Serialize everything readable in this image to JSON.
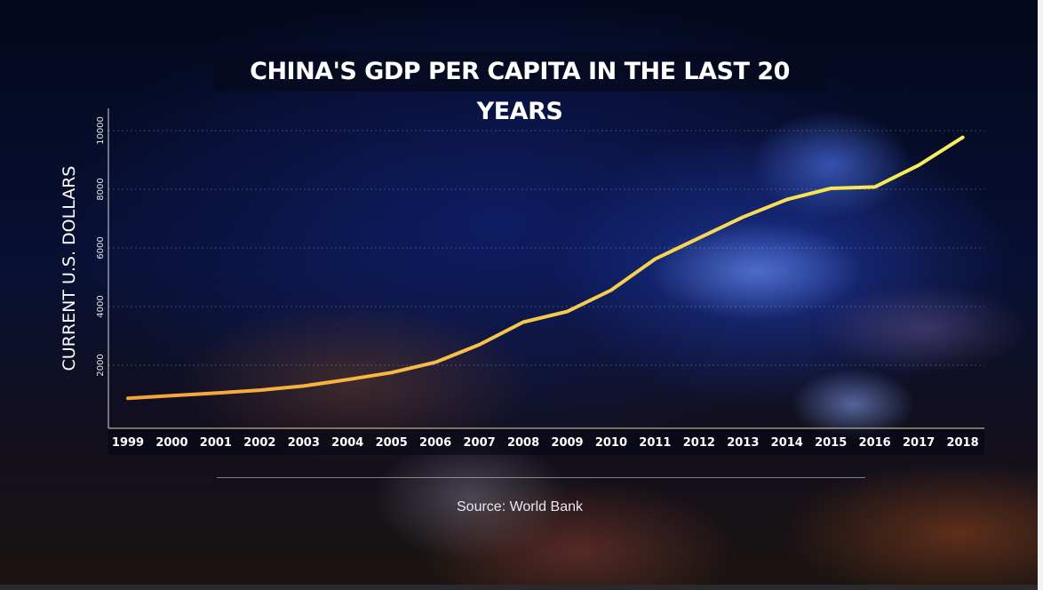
{
  "chart_data": {
    "type": "line",
    "title": "CHINA'S GDP PER CAPITA IN THE LAST 20 YEARS",
    "ylabel": "CURRENT U.S. DOLLARS",
    "xlabel": "",
    "source": "Source: World Bank",
    "x": [
      "1999",
      "2000",
      "2001",
      "2002",
      "2003",
      "2004",
      "2005",
      "2006",
      "2007",
      "2008",
      "2009",
      "2010",
      "2011",
      "2012",
      "2013",
      "2014",
      "2015",
      "2016",
      "2017",
      "2018"
    ],
    "series": [
      {
        "values": [
          870,
          960,
          1050,
          1150,
          1290,
          1510,
          1750,
          2100,
          2700,
          3470,
          3830,
          4560,
          5620,
          6340,
          7050,
          7650,
          8030,
          8080,
          8820,
          9770
        ]
      }
    ],
    "yticks": [
      "2000",
      "4000",
      "6000",
      "8000",
      "10000"
    ],
    "ylim": [
      0,
      11000
    ],
    "grid": true,
    "line_color_start": "#f5a13a",
    "line_color_end": "#f7f15a"
  }
}
